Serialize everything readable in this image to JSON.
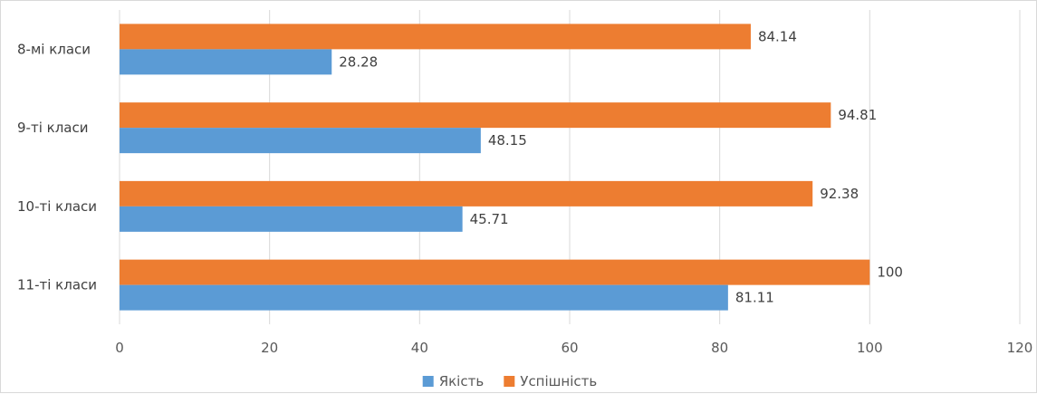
{
  "chart_data": {
    "type": "bar",
    "orientation": "horizontal",
    "categories": [
      "8-мі класи",
      "9-ті класи",
      "10-ті класи",
      "11-ті класи"
    ],
    "series": [
      {
        "name": "Якість",
        "color": "#5b9bd5",
        "values": [
          28.28,
          48.15,
          45.71,
          81.11
        ]
      },
      {
        "name": "Успішність",
        "color": "#ed7d31",
        "values": [
          84.14,
          94.81,
          92.38,
          100
        ]
      }
    ],
    "xlim": [
      0,
      120
    ],
    "x_ticks": [
      0,
      20,
      40,
      60,
      80,
      100,
      120
    ],
    "grid": true,
    "legend_position": "bottom",
    "title": "",
    "xlabel": "",
    "ylabel": ""
  }
}
